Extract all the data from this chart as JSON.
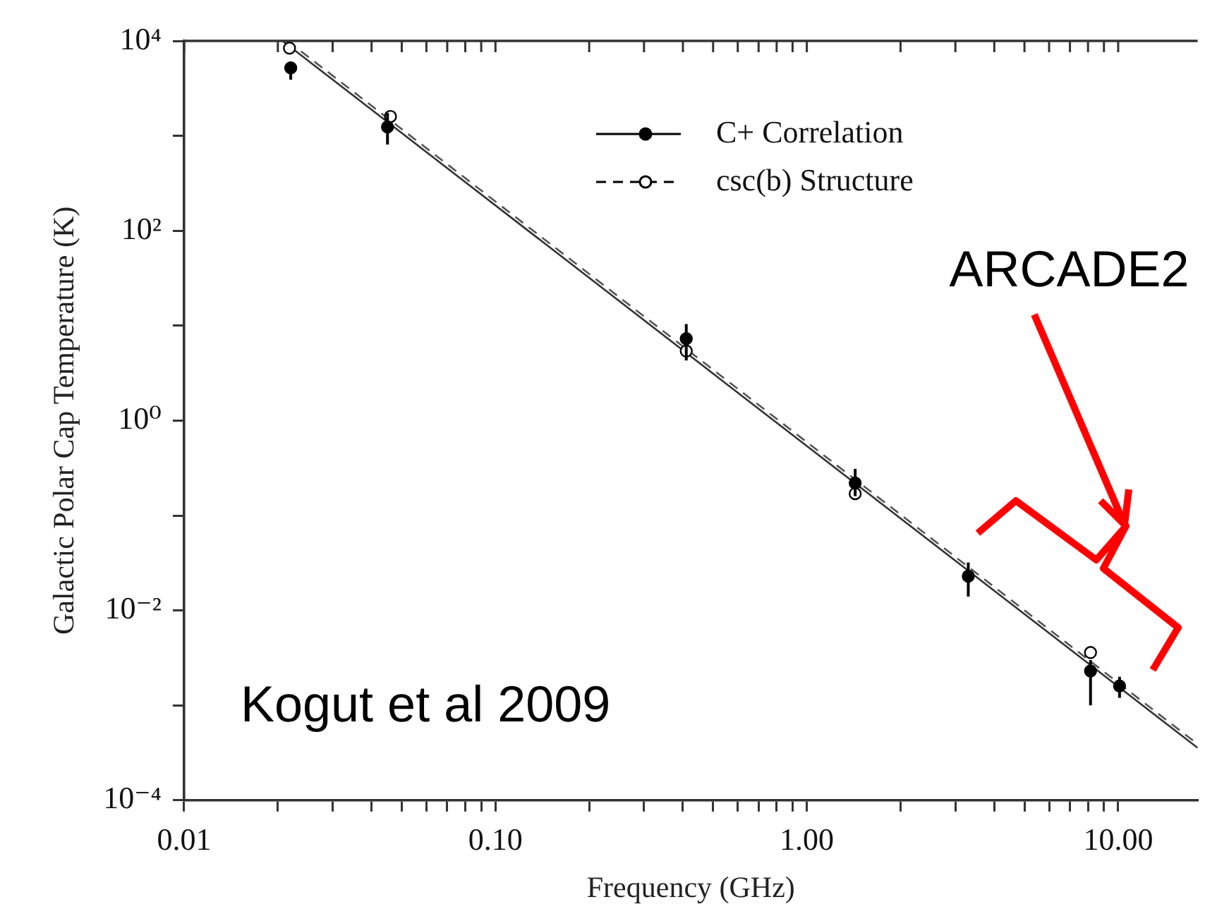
{
  "chart_data": {
    "type": "scatter",
    "xlabel": "Frequency (GHz)",
    "ylabel": "Galactic Polar Cap Temperature (K)",
    "log": "xy",
    "xlim": [
      0.01,
      18
    ],
    "ylim": [
      0.0001,
      10000
    ],
    "xticks": [
      {
        "value": 0.01,
        "label": "0.01"
      },
      {
        "value": 0.02,
        "label": null
      },
      {
        "value": 0.03,
        "label": null
      },
      {
        "value": 0.04,
        "label": null
      },
      {
        "value": 0.05,
        "label": null
      },
      {
        "value": 0.06,
        "label": null
      },
      {
        "value": 0.07,
        "label": null
      },
      {
        "value": 0.08,
        "label": null
      },
      {
        "value": 0.09,
        "label": null
      },
      {
        "value": 0.1,
        "label": "0.10"
      },
      {
        "value": 0.2,
        "label": null
      },
      {
        "value": 0.3,
        "label": null
      },
      {
        "value": 0.4,
        "label": null
      },
      {
        "value": 0.5,
        "label": null
      },
      {
        "value": 0.6,
        "label": null
      },
      {
        "value": 0.7,
        "label": null
      },
      {
        "value": 0.8,
        "label": null
      },
      {
        "value": 0.9,
        "label": null
      },
      {
        "value": 1,
        "label": "1.00"
      },
      {
        "value": 2,
        "label": null
      },
      {
        "value": 3,
        "label": null
      },
      {
        "value": 4,
        "label": null
      },
      {
        "value": 5,
        "label": null
      },
      {
        "value": 6,
        "label": null
      },
      {
        "value": 7,
        "label": null
      },
      {
        "value": 8,
        "label": null
      },
      {
        "value": 9,
        "label": null
      },
      {
        "value": 10,
        "label": "10.00"
      }
    ],
    "yticks": [
      {
        "value": 0.0001,
        "label": "10⁻⁴"
      },
      {
        "value": 0.001,
        "label": null
      },
      {
        "value": 0.01,
        "label": "10⁻²"
      },
      {
        "value": 0.1,
        "label": null
      },
      {
        "value": 1,
        "label": "10⁰"
      },
      {
        "value": 10,
        "label": null
      },
      {
        "value": 100,
        "label": "10²"
      },
      {
        "value": 1000,
        "label": null
      },
      {
        "value": 10000,
        "label": "10⁴"
      }
    ],
    "grid": false,
    "legend": "top right",
    "marker": "circle",
    "series": [
      {
        "name": "C+ Correlation",
        "color": "#000000",
        "line_style": "solid",
        "x": [
          0.022,
          0.045,
          0.41,
          1.43,
          3.3,
          8.15,
          10.1
        ],
        "values": [
          5200,
          1240,
          7.3,
          0.22,
          0.023,
          0.0023,
          0.0016
        ],
        "errors": [
          [
            3900,
            6000
          ],
          [
            810,
            1740
          ],
          [
            4.3,
            10.4
          ],
          [
            0.16,
            0.31
          ],
          [
            0.014,
            0.032
          ],
          [
            0.001,
            0.003
          ],
          [
            0.0012,
            0.002
          ]
        ]
      },
      {
        "name": "csc(b) Structure",
        "color": "#000000",
        "line_style": "dashed",
        "x": [
          0.0218,
          0.046,
          0.41,
          1.43,
          3.3,
          8.15
        ],
        "values": [
          8400,
          1600,
          5.4,
          0.17,
          null,
          0.0036
        ]
      },
      {
        "type": "line",
        "color": "#333333",
        "line_style": "solid",
        "marker": "none",
        "x": [
          0.0207,
          18
        ],
        "values": [
          10000,
          0.000356
        ]
      },
      {
        "type": "line",
        "color": "#555555",
        "line_style": "dashed",
        "marker": "none",
        "x": [
          0.0215,
          18
        ],
        "values": [
          10000,
          0.00039
        ]
      }
    ],
    "annotations": [
      "ARCADE2",
      "Kogut et al 2009"
    ]
  }
}
